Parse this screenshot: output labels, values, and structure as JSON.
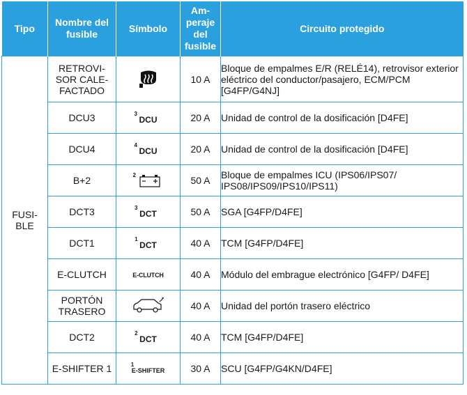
{
  "header": {
    "tipo": "Tipo",
    "nombre": "Nombre del fusible",
    "simbolo": "Símbolo",
    "amperaje": "Am-peraje del fusible",
    "circuito": "Circuito protegido"
  },
  "tipo": "FUSI-BLE",
  "rows": [
    {
      "name": "RETROVI-SOR CALE-FACTADO",
      "symbol_icon": "heated-mirror-icon",
      "amp": "10 A",
      "circuit": "Bloque de empalmes E/R (RELÉ14), retrovisor exterior eléctrico del conductor/pasajero, ECM/PCM [G4FP/G4NJ]"
    },
    {
      "name": "DCU3",
      "symbol_num": "3",
      "symbol_text": "DCU",
      "amp": "20 A",
      "circuit": "Unidad de control de la dosificación [D4FE]"
    },
    {
      "name": "DCU4",
      "symbol_num": "4",
      "symbol_text": "DCU",
      "amp": "20 A",
      "circuit": "Unidad de control de la dosificación [D4FE]"
    },
    {
      "name": "B+2",
      "symbol_num": "2",
      "symbol_icon": "battery-icon",
      "amp": "50 A",
      "circuit": "Bloque de empalmes ICU (IPS06/IPS07/ IPS08/IPS09/IPS10/IPS11)"
    },
    {
      "name": "DCT3",
      "symbol_num": "3",
      "symbol_text": "DCT",
      "amp": "50 A",
      "circuit": "SGA [G4FP/D4FE]"
    },
    {
      "name": "DCT1",
      "symbol_num": "1",
      "symbol_text": "DCT",
      "amp": "40 A",
      "circuit": "TCM [G4FP/D4FE]"
    },
    {
      "name": "E-CLUTCH",
      "symbol_text": "E-CLUTCH",
      "amp": "40 A",
      "circuit": "Módulo del embrague electrónico [G4FP/ D4FE]"
    },
    {
      "name": "PORTÓN TRASERO",
      "symbol_icon": "power-tailgate-icon",
      "amp": "40 A",
      "circuit": "Unidad del portón trasero eléctrico"
    },
    {
      "name": "DCT2",
      "symbol_num": "2",
      "symbol_text": "DCT",
      "amp": "40 A",
      "circuit": "TCM [G4FP/D4FE]"
    },
    {
      "name": "E-SHIFTER 1",
      "symbol_num": "1",
      "symbol_text": "E-SHIFTER",
      "amp": "30 A",
      "circuit": "SCU [G4FP/G4KN/D4FE]"
    }
  ]
}
